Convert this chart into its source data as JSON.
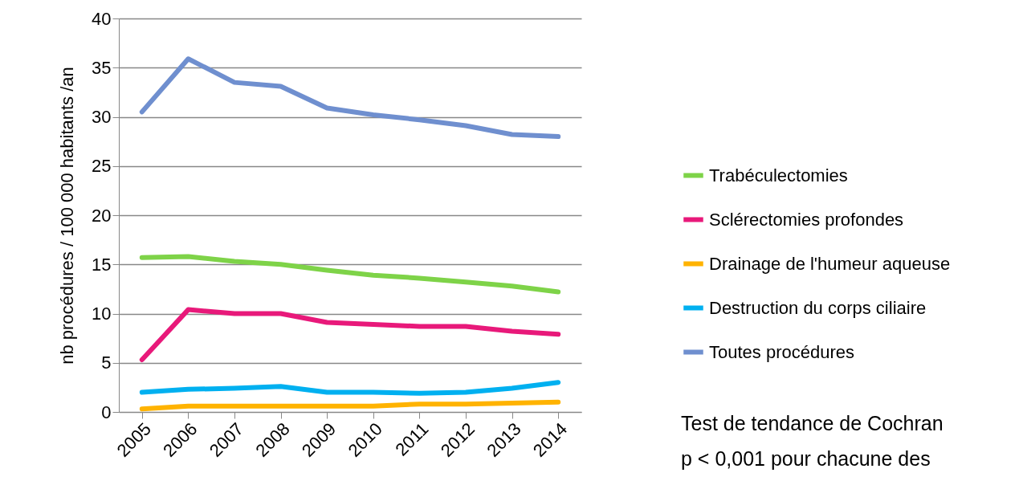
{
  "chart_data": {
    "type": "line",
    "ylabel": "nb procédures / 100 000 habitants /an",
    "categories": [
      "2005",
      "2006",
      "2007",
      "2008",
      "2009",
      "2010",
      "2011",
      "2012",
      "2013",
      "2014"
    ],
    "series": [
      {
        "name": "Trabéculectomies",
        "color": "#7ed348",
        "values": [
          15.7,
          15.8,
          15.3,
          15.0,
          14.4,
          13.9,
          13.6,
          13.2,
          12.8,
          12.2
        ]
      },
      {
        "name": "Sclérectomies profondes",
        "color": "#e8197a",
        "values": [
          5.3,
          10.4,
          10.0,
          10.0,
          9.1,
          8.9,
          8.7,
          8.7,
          8.2,
          7.9
        ]
      },
      {
        "name": "Drainage de l'humeur aqueuse",
        "color": "#ffb300",
        "values": [
          0.3,
          0.6,
          0.6,
          0.6,
          0.6,
          0.6,
          0.8,
          0.8,
          0.9,
          1.0
        ]
      },
      {
        "name": "Destruction du corps ciliaire",
        "color": "#00b0f0",
        "values": [
          2.0,
          2.3,
          2.4,
          2.6,
          2.0,
          2.0,
          1.9,
          2.0,
          2.4,
          3.0
        ]
      },
      {
        "name": "Toutes procédures",
        "color": "#6f8fcf",
        "values": [
          30.5,
          35.9,
          33.5,
          33.1,
          30.9,
          30.2,
          29.7,
          29.1,
          28.2,
          28.0
        ]
      }
    ],
    "ylim": [
      0,
      40
    ],
    "yticks": [
      0,
      5,
      10,
      15,
      20,
      25,
      30,
      35,
      40
    ],
    "grid": "y",
    "legend": "right",
    "marker": "none",
    "line_style": "solid",
    "annotations": [
      "Test de tendance de Cochran",
      "p < 0,001 pour chacune des"
    ]
  }
}
